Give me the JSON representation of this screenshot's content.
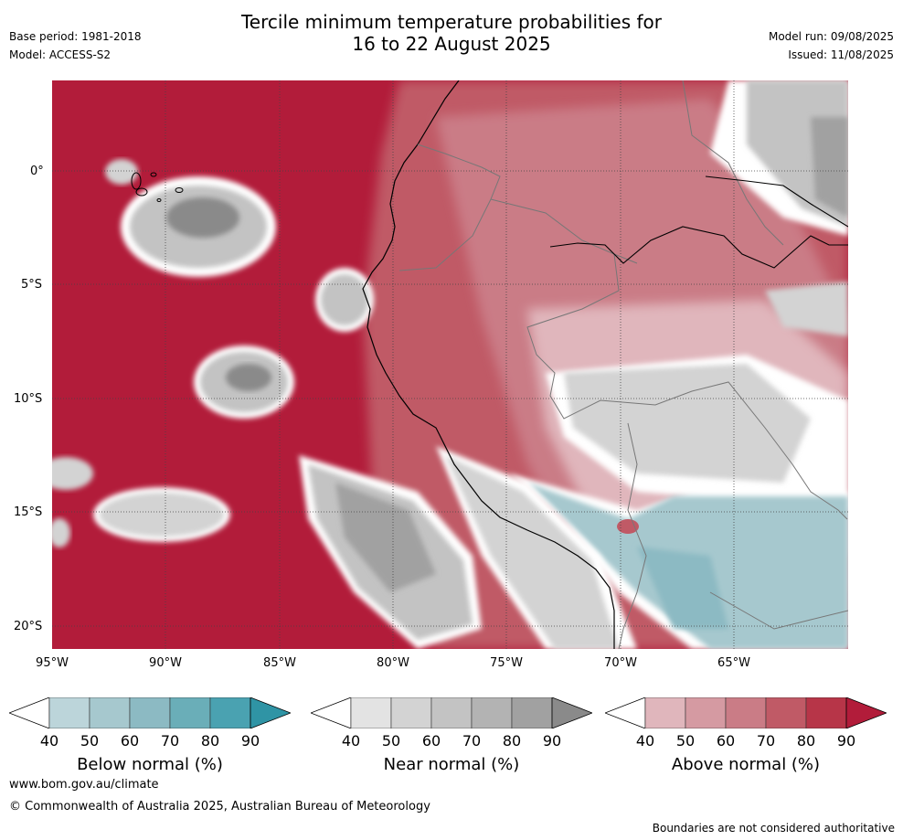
{
  "title_line1": "Tercile minimum temperature probabilities for",
  "title_line2": "16 to 22 August 2025",
  "base_period": "Base period: 1981-2018",
  "model": "Model: ACCESS-S2",
  "model_run": "Model run: 09/08/2025",
  "issued": "Issued: 11/08/2025",
  "lat_labels": [
    "0°",
    "5°S",
    "10°S",
    "15°S",
    "20°S"
  ],
  "lon_labels": [
    "95°W",
    "90°W",
    "85°W",
    "80°W",
    "75°W",
    "70°W",
    "65°W"
  ],
  "colorbars": [
    {
      "title": "Below normal (%)",
      "ticks": [
        "40",
        "50",
        "60",
        "70",
        "80",
        "90"
      ],
      "colors": [
        "#bcd5da",
        "#a6c8ce",
        "#8cbac3",
        "#6aaeb8",
        "#4aa2b1",
        "#2f94a5"
      ]
    },
    {
      "title": "Near normal (%)",
      "ticks": [
        "40",
        "50",
        "60",
        "70",
        "80",
        "90"
      ],
      "colors": [
        "#e3e3e3",
        "#d3d3d3",
        "#c3c3c3",
        "#b3b3b3",
        "#a1a1a1",
        "#8a8a8a"
      ]
    },
    {
      "title": "Above normal (%)",
      "ticks": [
        "40",
        "50",
        "60",
        "70",
        "80",
        "90"
      ],
      "colors": [
        "#e0b6bc",
        "#d59aa2",
        "#ca7c86",
        "#c05a66",
        "#b73548",
        "#b21c3a"
      ]
    }
  ],
  "footer_url": "www.bom.gov.au/climate",
  "footer_copyright": "© Commonwealth of Australia 2025, Australian Bureau of Meteorology",
  "footer_note": "Boundaries are not considered authoritative"
}
